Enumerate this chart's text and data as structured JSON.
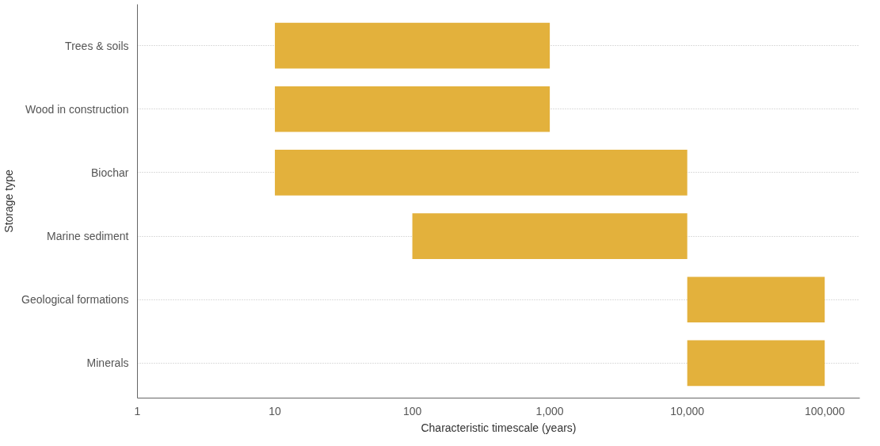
{
  "chart_data": {
    "type": "bar",
    "orientation": "horizontal",
    "log": "x",
    "ylabel": "Storage type",
    "xlabel": "Characteristic timescale (years)",
    "categories": [
      "Trees & soils",
      "Wood in construction",
      "Biochar",
      "Marine sediment",
      "Geological formations",
      "Minerals"
    ],
    "base": [
      10,
      10,
      10,
      100,
      10000,
      10000
    ],
    "values": [
      990,
      990,
      9990,
      9900,
      90000,
      90000
    ],
    "color": "#e3b13c",
    "xlim": [
      1,
      180000
    ],
    "xticks": [
      1,
      10,
      100,
      {
        "value": 1000,
        "label": "1,000"
      },
      {
        "value": 10000,
        "label": "10,000"
      },
      {
        "value": 100000,
        "label": "100,000"
      }
    ],
    "grid": "y"
  }
}
